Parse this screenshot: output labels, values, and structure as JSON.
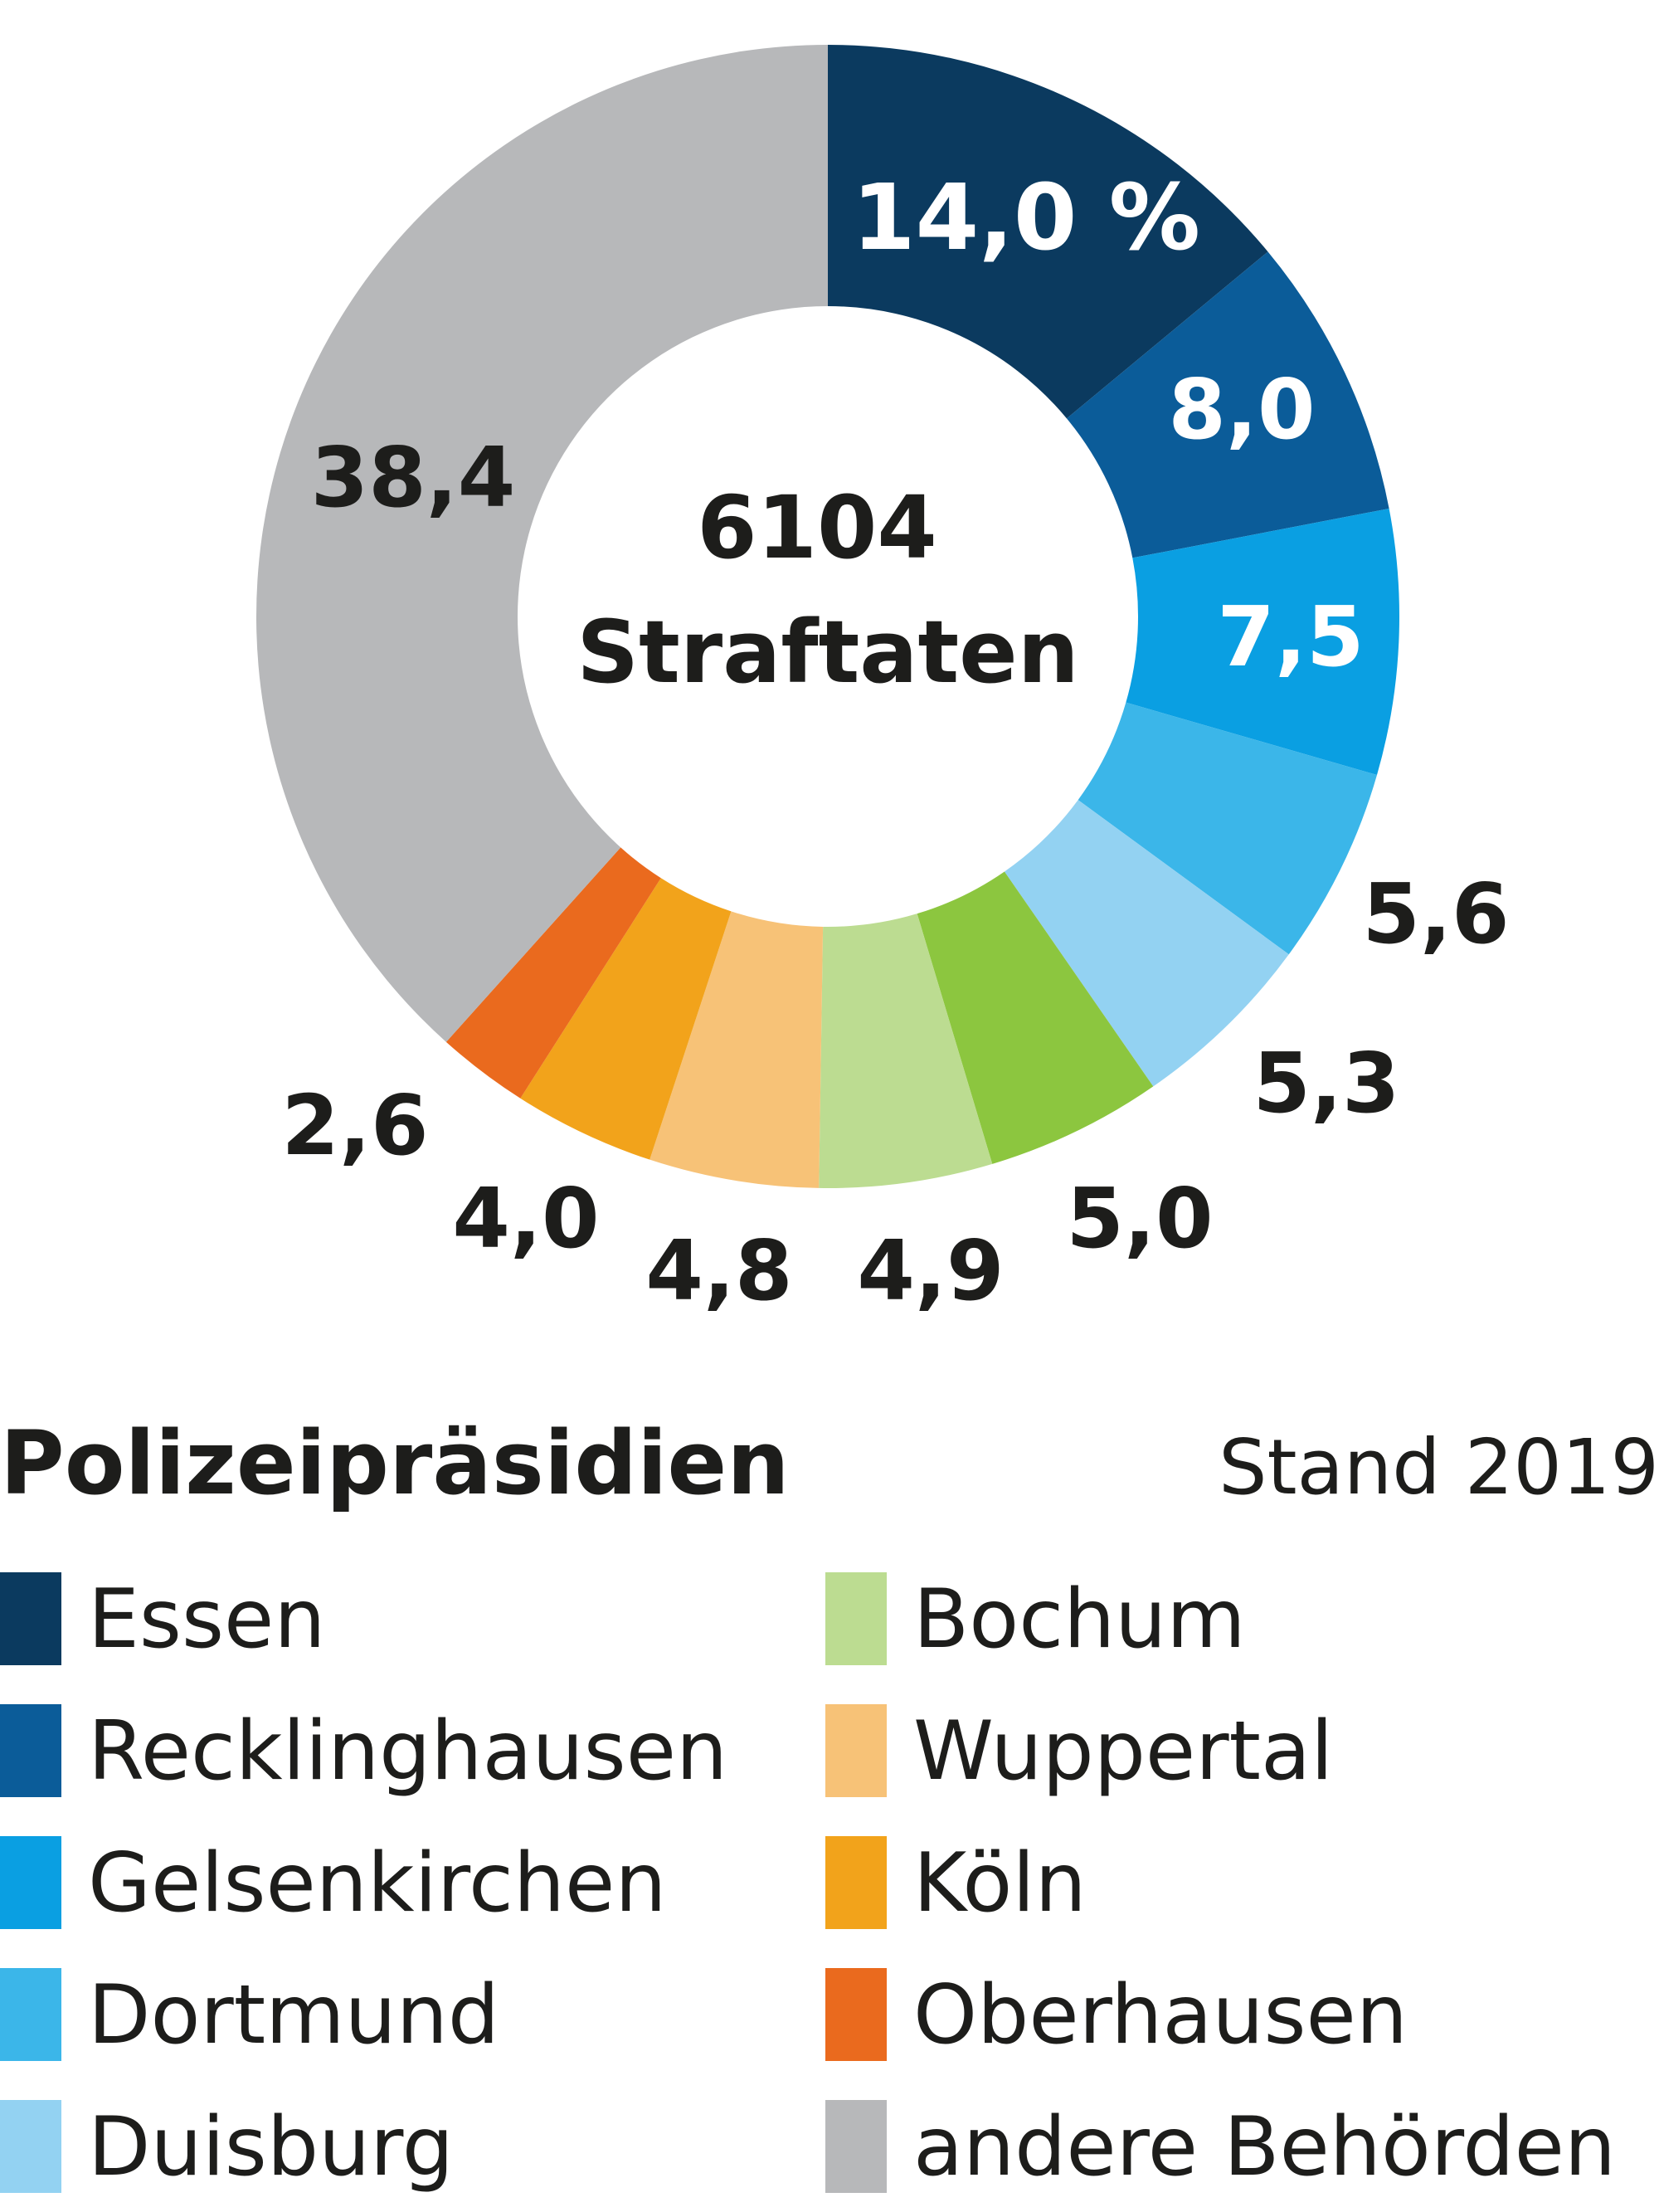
{
  "chart_data": {
    "type": "pie",
    "variant": "donut",
    "center_value": "6104",
    "center_label": "Straftaten",
    "unit": "%",
    "segments": [
      {
        "name": "Essen",
        "value": 14.0,
        "label": "14,0 %",
        "color": "#0b3a5f",
        "label_color": "#ffffff"
      },
      {
        "name": "Recklinghausen",
        "value": 8.0,
        "label": "8,0",
        "color": "#0b5c99",
        "label_color": "#ffffff"
      },
      {
        "name": "Gelsenkirchen",
        "value": 7.5,
        "label": "7,5",
        "color": "#0a9fe2",
        "label_color": "#ffffff"
      },
      {
        "name": "Dortmund",
        "value": 5.6,
        "label": "5,6",
        "color": "#3bb6e9",
        "label_color": "#1d1d1b"
      },
      {
        "name": "Duisburg",
        "value": 5.3,
        "label": "5,3",
        "color": "#93d2f2",
        "label_color": "#1d1d1b"
      },
      {
        "name": "",
        "value": 5.0,
        "label": "5,0",
        "color": "#8cc63f",
        "label_color": "#1d1d1b"
      },
      {
        "name": "Bochum",
        "value": 4.9,
        "label": "4,9",
        "color": "#bcdc91",
        "label_color": "#1d1d1b"
      },
      {
        "name": "Wuppertal",
        "value": 4.8,
        "label": "4,8",
        "color": "#f7c277",
        "label_color": "#1d1d1b"
      },
      {
        "name": "Köln",
        "value": 4.0,
        "label": "4,0",
        "color": "#f2a31b",
        "label_color": "#1d1d1b"
      },
      {
        "name": "Oberhausen",
        "value": 2.6,
        "label": "2,6",
        "color": "#ea6a1e",
        "label_color": "#1d1d1b"
      },
      {
        "name": "andere Behörden",
        "value": 38.4,
        "label": "38,4",
        "color": "#b7b8ba",
        "label_color": "#1d1d1b"
      }
    ],
    "legend": {
      "title": "Polizeipräsidien",
      "note": "Stand 2019",
      "placement": "bottom",
      "items": [
        {
          "name": "Essen",
          "color": "#0b3a5f"
        },
        {
          "name": "Recklinghausen",
          "color": "#0b5c99"
        },
        {
          "name": "Gelsenkirchen",
          "color": "#0a9fe2"
        },
        {
          "name": "Dortmund",
          "color": "#3bb6e9"
        },
        {
          "name": "Duisburg",
          "color": "#93d2f2"
        },
        {
          "name": "Bochum",
          "color": "#bcdc91"
        },
        {
          "name": "Wuppertal",
          "color": "#f7c277"
        },
        {
          "name": "Köln",
          "color": "#f2a31b"
        },
        {
          "name": "Oberhausen",
          "color": "#ea6a1e"
        },
        {
          "name": "andere Behörden",
          "color": "#b7b8ba"
        }
      ]
    }
  }
}
